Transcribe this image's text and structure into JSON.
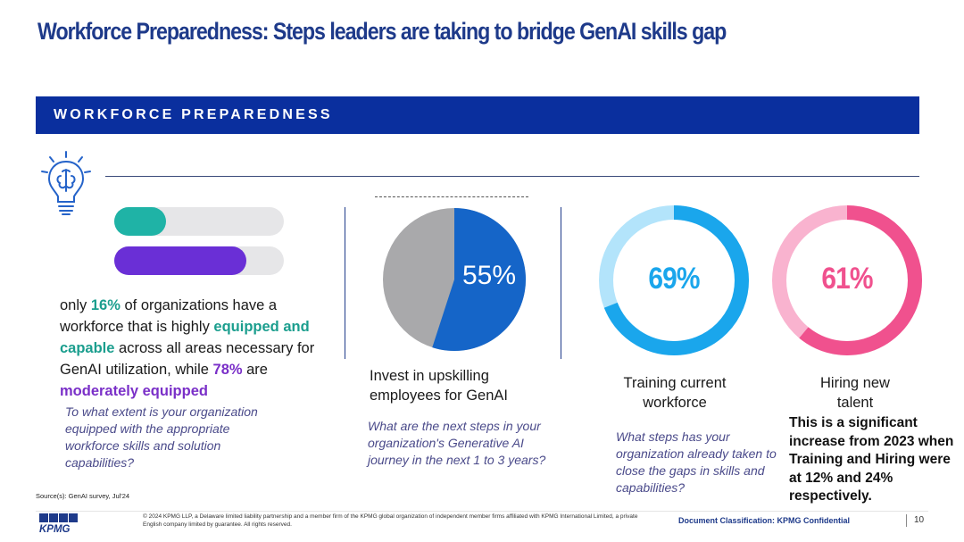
{
  "title": "Workforce Preparedness: Steps leaders are taking to bridge GenAI skills gap",
  "banner": "WORKFORCE PREPAREDNESS",
  "left": {
    "bars": [
      {
        "name": "highly equipped",
        "value": 16,
        "color": "#1fb3a6"
      },
      {
        "name": "moderately equipped",
        "value": 78,
        "color": "#6a2fd6"
      }
    ],
    "para_1": "only ",
    "pct_1": "16%",
    "para_2": " of organizations have a workforce that is highly ",
    "strong_1": "equipped and capable",
    "para_3": " across all areas necessary for GenAI utilization, while ",
    "pct_2": "78%",
    "para_4": " are ",
    "strong_2": "moderately equipped",
    "question": "To what extent is your organization equipped with the appropriate workforce skills and solution capabilities?"
  },
  "colors": {
    "navy": "#0a2f9e",
    "pie_blue": "#1565c8",
    "pie_grey": "#a9a9ab",
    "cyan": "#1aa6ec",
    "cyan_light": "#b3e4fb",
    "pink": "#f0518e",
    "pink_light": "#f9b3cf"
  },
  "chart_data": [
    {
      "type": "pie",
      "values": [
        55,
        45
      ],
      "labels": [
        "55%",
        ""
      ],
      "caption": "Invest in upskilling employees for GenAI"
    },
    {
      "type": "pie",
      "values": [
        69,
        31
      ],
      "labels": [
        "69%",
        ""
      ],
      "caption": "Training current workforce"
    },
    {
      "type": "pie",
      "values": [
        61,
        39
      ],
      "labels": [
        "61%",
        ""
      ],
      "caption": "Hiring new talent"
    }
  ],
  "mid": {
    "pct": "55%",
    "caption": "Invest in upskilling employees for GenAI",
    "question": "What are the next steps in your organization's Generative AI journey in the next 1 to 3 years?"
  },
  "training": {
    "pct": "69%",
    "caption_1": "Training current",
    "caption_2": "workforce"
  },
  "hiring": {
    "pct": "61%",
    "caption_1": "Hiring new",
    "caption_2": "talent"
  },
  "right_question": "What steps has your organization already taken to close the gaps in skills and capabilities?",
  "note": "This is a significant increase from 2023 when Training and Hiring were at 12% and 24% respectively.",
  "source": "Source(s):    GenAI survey, Jul'24",
  "footer": {
    "logo": "KPMG",
    "copyright": "© 2024 KPMG LLP, a Delaware limited liability partnership and a member firm of the KPMG global organization of independent member firms affiliated with KPMG International Limited, a private English company limited by guarantee. All rights reserved.",
    "classification": "Document Classification: KPMG Confidential",
    "page": "10"
  }
}
